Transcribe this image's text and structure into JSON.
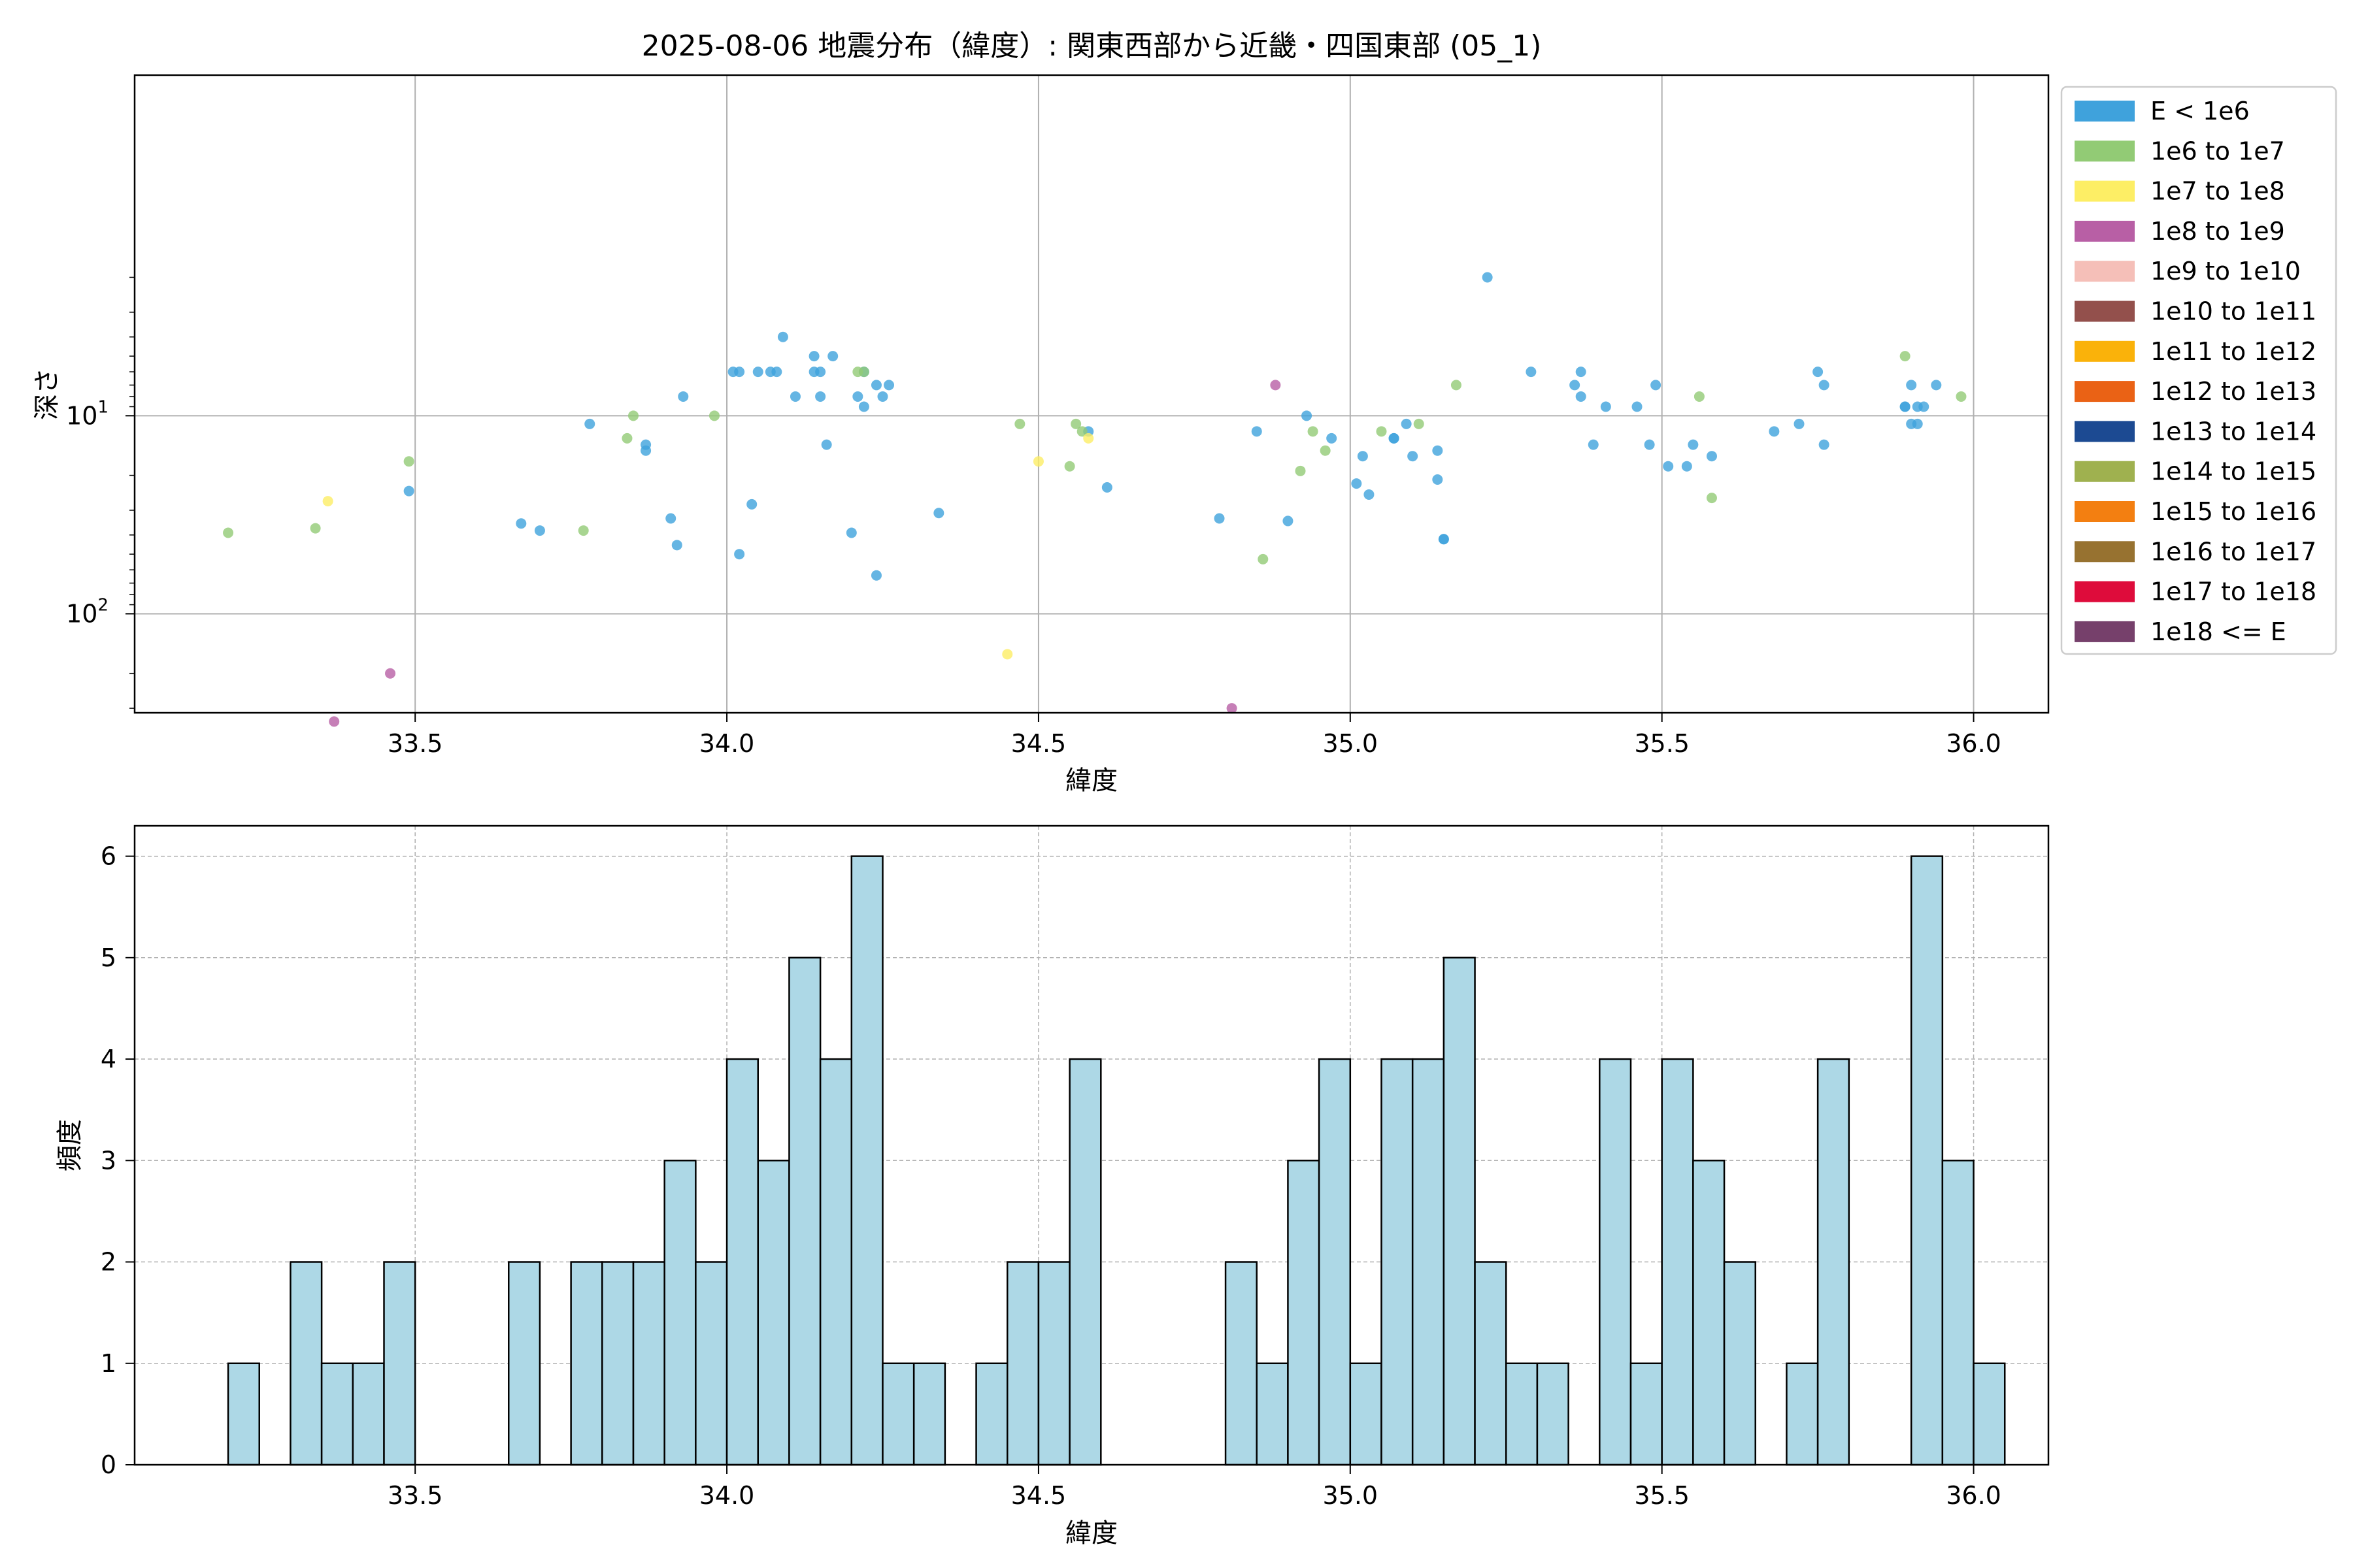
{
  "figure": {
    "title": "2025-08-06 地震分布（緯度）: 関東西部から近畿・四国東部 (05_1)"
  },
  "chart_data": [
    {
      "type": "scatter",
      "xlabel": "緯度",
      "ylabel": "深さ",
      "xlim": [
        33.05,
        36.12
      ],
      "ylim": [
        -2.5,
        0.72
      ],
      "y_scale": "log",
      "y_axis_inverted": true,
      "x_ticks": [
        "33.5",
        "34.0",
        "34.5",
        "35.0",
        "35.5",
        "36.0"
      ],
      "y_ticks": [
        {
          "label": "10",
          "exp": "1",
          "value": 10
        },
        {
          "label": "10",
          "exp": "2",
          "value": 100
        }
      ],
      "grid": true,
      "legend": {
        "placement": "outside-right",
        "entries": [
          {
            "label": "E < 1e6",
            "color": "#3fa2dc"
          },
          {
            "label": "1e6 to 1e7",
            "color": "#92cb75"
          },
          {
            "label": "1e7 to 1e8",
            "color": "#fdee65"
          },
          {
            "label": "1e8 to 1e9",
            "color": "#b85fa5"
          },
          {
            "label": "1e9 to 1e10",
            "color": "#f5bfb8"
          },
          {
            "label": "1e10 to 1e11",
            "color": "#93504c"
          },
          {
            "label": "1e11 to 1e12",
            "color": "#fab20a"
          },
          {
            "label": "1e12 to 1e13",
            "color": "#ea6215"
          },
          {
            "label": "1e13 to 1e14",
            "color": "#1c4a92"
          },
          {
            "label": "1e14 to 1e15",
            "color": "#9fb14f"
          },
          {
            "label": "1e15 to 1e16",
            "color": "#f37f11"
          },
          {
            "label": "1e16 to 1e17",
            "color": "#977230"
          },
          {
            "label": "1e17 to 1e18",
            "color": "#de0c3b"
          },
          {
            "label": "1e18 <= E",
            "color": "#76406b"
          }
        ]
      },
      "series": [
        {
          "class": 0,
          "points": [
            [
              33.49,
              24
            ],
            [
              33.67,
              35
            ],
            [
              33.7,
              38
            ],
            [
              33.78,
              11
            ],
            [
              33.87,
              14
            ],
            [
              33.87,
              15
            ],
            [
              33.91,
              33
            ],
            [
              33.92,
              45
            ],
            [
              33.93,
              8
            ],
            [
              34.01,
              6
            ],
            [
              34.02,
              6
            ],
            [
              34.02,
              50
            ],
            [
              34.04,
              28
            ],
            [
              34.05,
              6
            ],
            [
              34.07,
              6
            ],
            [
              34.08,
              6
            ],
            [
              34.09,
              4
            ],
            [
              34.11,
              8
            ],
            [
              34.14,
              5
            ],
            [
              34.14,
              6
            ],
            [
              34.15,
              6
            ],
            [
              34.15,
              8
            ],
            [
              34.16,
              14
            ],
            [
              34.17,
              5
            ],
            [
              34.2,
              39
            ],
            [
              34.21,
              8
            ],
            [
              34.22,
              9
            ],
            [
              34.22,
              6
            ],
            [
              34.24,
              7
            ],
            [
              34.24,
              64
            ],
            [
              34.25,
              8
            ],
            [
              34.26,
              7
            ],
            [
              34.34,
              31
            ],
            [
              34.58,
              12
            ],
            [
              34.61,
              23
            ],
            [
              34.79,
              33
            ],
            [
              34.85,
              12
            ],
            [
              34.9,
              34
            ],
            [
              34.93,
              10
            ],
            [
              34.97,
              13
            ],
            [
              35.01,
              22
            ],
            [
              35.02,
              16
            ],
            [
              35.03,
              25
            ],
            [
              35.07,
              13
            ],
            [
              35.07,
              13
            ],
            [
              35.09,
              11
            ],
            [
              35.1,
              16
            ],
            [
              35.14,
              15
            ],
            [
              35.14,
              21
            ],
            [
              35.15,
              42
            ],
            [
              35.15,
              42
            ],
            [
              35.22,
              2
            ],
            [
              35.29,
              6
            ],
            [
              35.36,
              7
            ],
            [
              35.37,
              6
            ],
            [
              35.37,
              8
            ],
            [
              35.39,
              14
            ],
            [
              35.41,
              9
            ],
            [
              35.46,
              9
            ],
            [
              35.48,
              14
            ],
            [
              35.49,
              7
            ],
            [
              35.51,
              18
            ],
            [
              35.54,
              18
            ],
            [
              35.55,
              14
            ],
            [
              35.58,
              16
            ],
            [
              35.68,
              12
            ],
            [
              35.72,
              11
            ],
            [
              35.75,
              6
            ],
            [
              35.76,
              7
            ],
            [
              35.76,
              14
            ],
            [
              35.89,
              9
            ],
            [
              35.89,
              9
            ],
            [
              35.9,
              7
            ],
            [
              35.9,
              11
            ],
            [
              35.91,
              11
            ],
            [
              35.91,
              9
            ],
            [
              35.92,
              9
            ],
            [
              35.94,
              7
            ]
          ]
        },
        {
          "class": 1,
          "points": [
            [
              33.2,
              39
            ],
            [
              33.34,
              37
            ],
            [
              33.49,
              17
            ],
            [
              33.77,
              38
            ],
            [
              33.84,
              13
            ],
            [
              33.85,
              10
            ],
            [
              33.98,
              10
            ],
            [
              34.21,
              6
            ],
            [
              34.22,
              6
            ],
            [
              34.47,
              11
            ],
            [
              34.55,
              18
            ],
            [
              34.56,
              11
            ],
            [
              34.57,
              12
            ],
            [
              34.86,
              53
            ],
            [
              34.92,
              19
            ],
            [
              34.94,
              12
            ],
            [
              34.96,
              15
            ],
            [
              35.05,
              12
            ],
            [
              35.11,
              11
            ],
            [
              35.17,
              7
            ],
            [
              35.56,
              8
            ],
            [
              35.58,
              26
            ],
            [
              35.89,
              5
            ],
            [
              35.98,
              8
            ]
          ]
        },
        {
          "class": 2,
          "points": [
            [
              33.36,
              27
            ],
            [
              34.45,
              160
            ],
            [
              34.5,
              17
            ],
            [
              34.58,
              13
            ]
          ]
        },
        {
          "class": 3,
          "points": [
            [
              33.37,
              350
            ],
            [
              33.46,
              200
            ],
            [
              34.81,
              300
            ],
            [
              34.88,
              7
            ]
          ]
        }
      ]
    },
    {
      "type": "bar",
      "subtype": "histogram",
      "xlabel": "緯度",
      "ylabel": "頻度",
      "xlim": [
        33.05,
        36.12
      ],
      "ylim": [
        0,
        6.3
      ],
      "x_ticks": [
        "33.5",
        "34.0",
        "34.5",
        "35.0",
        "35.5",
        "36.0"
      ],
      "y_ticks": [
        "0",
        "1",
        "2",
        "3",
        "4",
        "5",
        "6"
      ],
      "grid": true,
      "bin_start": 33.2,
      "bin_width": 0.05,
      "counts": [
        1,
        0,
        2,
        1,
        1,
        2,
        0,
        0,
        0,
        2,
        0,
        2,
        2,
        2,
        3,
        2,
        4,
        3,
        5,
        4,
        6,
        1,
        1,
        0,
        1,
        2,
        2,
        4,
        0,
        0,
        0,
        0,
        2,
        1,
        3,
        4,
        1,
        4,
        4,
        5,
        2,
        1,
        1,
        0,
        4,
        1,
        4,
        3,
        2,
        0,
        1,
        4,
        0,
        0,
        6,
        3,
        1
      ]
    }
  ]
}
